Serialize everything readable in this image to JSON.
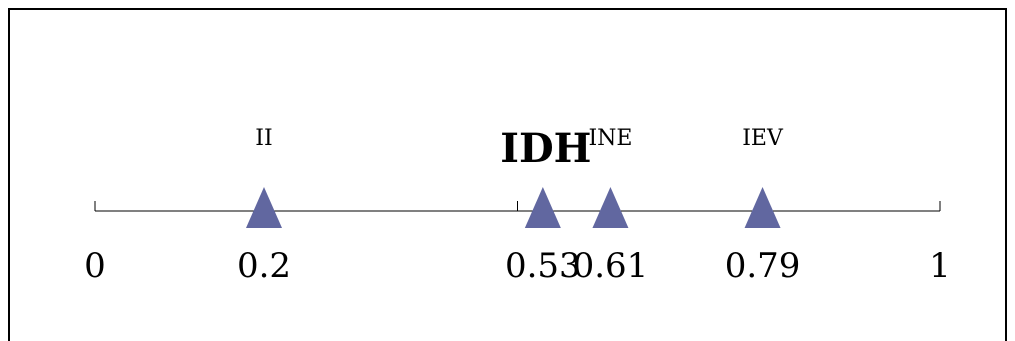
{
  "scale": {
    "min": 0,
    "max": 1,
    "ticks": [
      0,
      0.5,
      1
    ],
    "endpoint_labels": [
      "0",
      "1"
    ]
  },
  "markers": [
    {
      "name": "II",
      "value": 0.2,
      "value_label": "0.2",
      "highlight": false
    },
    {
      "name": "IDH",
      "value": 0.53,
      "value_label": "0.53",
      "highlight": true
    },
    {
      "name": "INE",
      "value": 0.61,
      "value_label": "0.61",
      "highlight": false
    },
    {
      "name": "IEV",
      "value": 0.79,
      "value_label": "0.79",
      "highlight": false
    }
  ],
  "colors": {
    "marker": "#6167a0",
    "axis": "#000000",
    "text": "#000000"
  }
}
